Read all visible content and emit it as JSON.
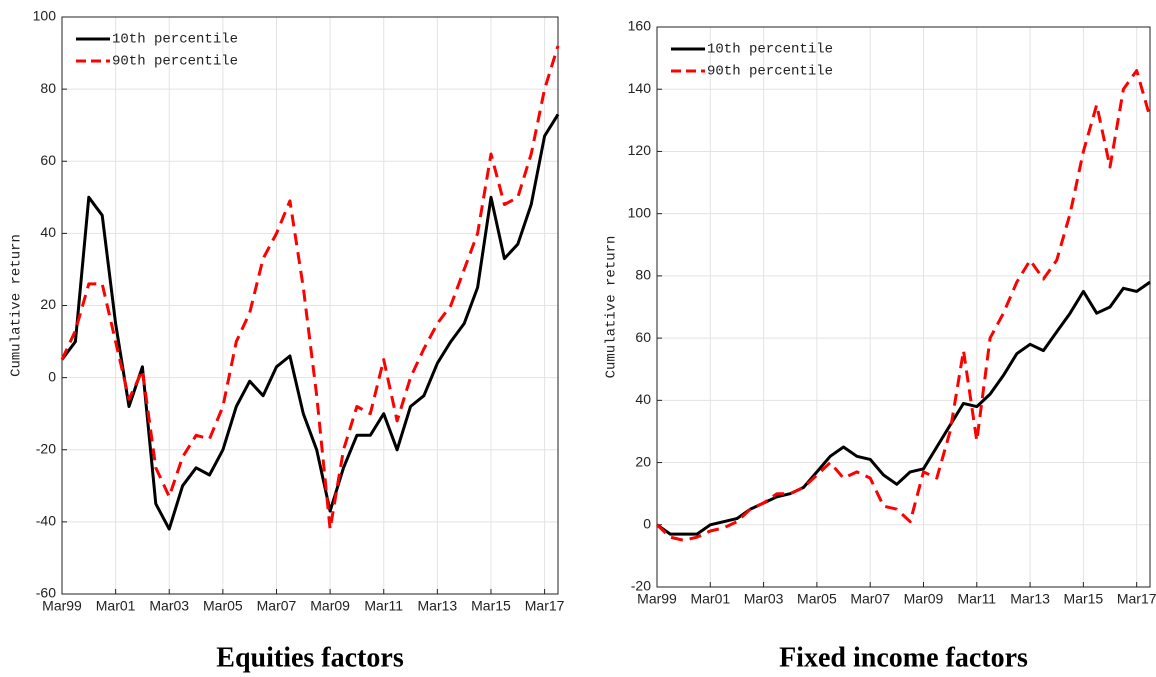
{
  "chart_data": [
    {
      "type": "line",
      "title": "Equities factors",
      "y_label": "Cumulative return",
      "categories": [
        "Mar99",
        null,
        null,
        null,
        "Mar01",
        null,
        null,
        null,
        "Mar03",
        null,
        null,
        null,
        "Mar05",
        null,
        null,
        null,
        "Mar07",
        null,
        null,
        null,
        "Mar09",
        null,
        null,
        null,
        "Mar11",
        null,
        null,
        null,
        "Mar13",
        null,
        null,
        null,
        "Mar15",
        null,
        null,
        null,
        "Mar17",
        null
      ],
      "series": [
        {
          "name": "10th percentile",
          "color": "#000000",
          "dash": false,
          "values": [
            5,
            10,
            50,
            45,
            15,
            -8,
            3,
            -35,
            -42,
            -30,
            -25,
            -27,
            -20,
            -8,
            -1,
            -5,
            3,
            6,
            -10,
            -20,
            -37,
            -25,
            -16,
            -16,
            -10,
            -20,
            -8,
            -5,
            4,
            10,
            15,
            25,
            50,
            33,
            37,
            48,
            67,
            73
          ]
        },
        {
          "name": "90th percentile",
          "color": "#ff0000",
          "dash": true,
          "values": [
            5,
            13,
            26,
            26,
            10,
            -6,
            2,
            -25,
            -33,
            -22,
            -16,
            -17,
            -8,
            10,
            18,
            33,
            40,
            49,
            25,
            -5,
            -42,
            -20,
            -8,
            -10,
            5,
            -12,
            0,
            8,
            15,
            20,
            30,
            40,
            62,
            48,
            50,
            62,
            80,
            92
          ]
        }
      ],
      "ylim": [
        -60,
        100
      ],
      "yticks": [
        -60,
        -40,
        -20,
        0,
        20,
        40,
        60,
        80,
        100
      ],
      "grid": true,
      "legend": "upper-left"
    },
    {
      "type": "line",
      "title": "Fixed income factors",
      "y_label": "Cumulative return",
      "categories": [
        "Mar99",
        null,
        null,
        null,
        "Mar01",
        null,
        null,
        null,
        "Mar03",
        null,
        null,
        null,
        "Mar05",
        null,
        null,
        null,
        "Mar07",
        null,
        null,
        null,
        "Mar09",
        null,
        null,
        null,
        "Mar11",
        null,
        null,
        null,
        "Mar13",
        null,
        null,
        null,
        "Mar15",
        null,
        null,
        null,
        "Mar17",
        null
      ],
      "series": [
        {
          "name": "10th percentile",
          "color": "#000000",
          "dash": false,
          "values": [
            0,
            -3,
            -3,
            -3,
            0,
            1,
            2,
            5,
            7,
            9,
            10,
            12,
            17,
            22,
            25,
            22,
            21,
            16,
            13,
            17,
            18,
            25,
            32,
            39,
            38,
            42,
            48,
            55,
            58,
            56,
            62,
            68,
            75,
            68,
            70,
            76,
            75,
            78
          ]
        },
        {
          "name": "90th percentile",
          "color": "#ff0000",
          "dash": true,
          "values": [
            0,
            -4,
            -5,
            -4,
            -2,
            -1,
            1,
            5,
            7,
            10,
            10,
            12,
            16,
            20,
            15,
            17,
            15,
            6,
            5,
            1,
            17,
            15,
            30,
            56,
            27,
            60,
            68,
            78,
            85,
            79,
            85,
            100,
            120,
            135,
            115,
            140,
            146,
            131
          ]
        }
      ],
      "ylim": [
        -20,
        160
      ],
      "yticks": [
        -20,
        0,
        20,
        40,
        60,
        80,
        100,
        120,
        140,
        160
      ],
      "grid": true,
      "legend": "upper-left"
    }
  ]
}
